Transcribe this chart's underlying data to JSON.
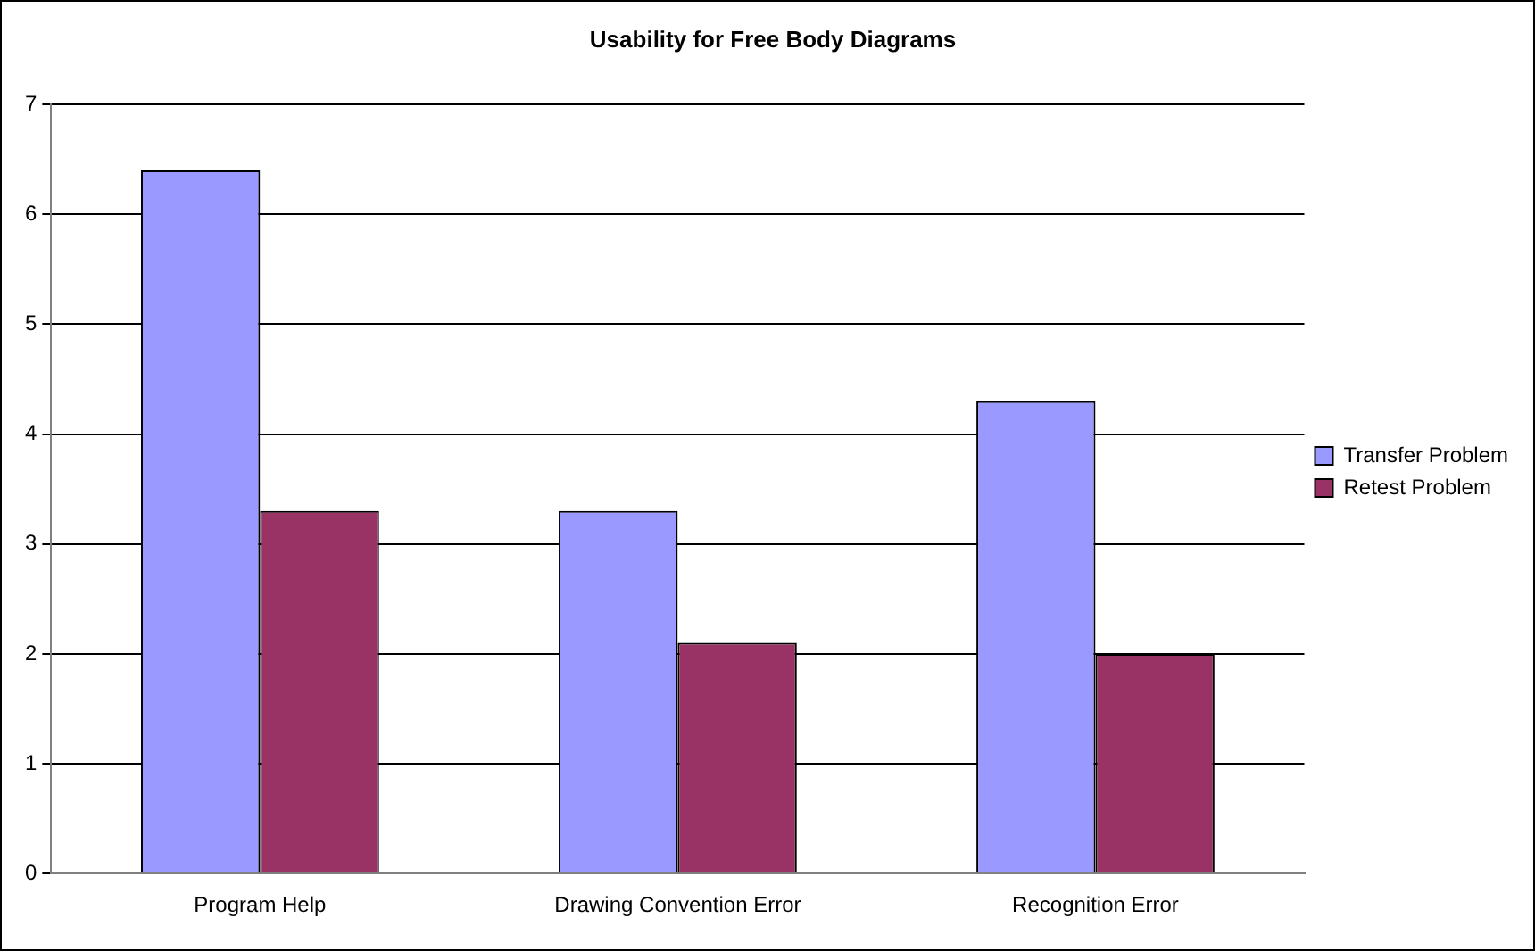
{
  "chart_data": {
    "type": "bar",
    "title": "Usability for Free Body Diagrams",
    "categories": [
      "Program Help",
      "Drawing Convention Error",
      "Recognition Error"
    ],
    "series": [
      {
        "name": "Transfer Problem",
        "color": "#9999ff",
        "values": [
          6.4,
          3.3,
          4.3
        ]
      },
      {
        "name": "Retest Problem",
        "color": "#993366",
        "values": [
          3.3,
          2.1,
          2.0
        ]
      }
    ],
    "ylim": [
      0,
      7
    ],
    "yticks": [
      0,
      1,
      2,
      3,
      4,
      5,
      6,
      7
    ],
    "grid": "y",
    "legend": "right"
  }
}
